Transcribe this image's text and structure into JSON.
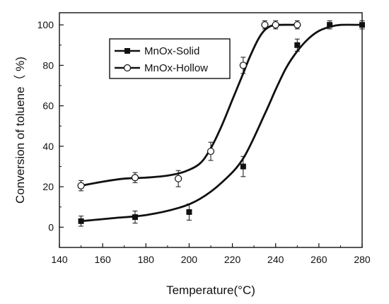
{
  "chart_data": {
    "type": "scatter",
    "title": "",
    "xlabel": "Temperature(°C)",
    "ylabel": "Conversion of toluene（ %)",
    "xlim": [
      140,
      280
    ],
    "ylim": [
      -10,
      106
    ],
    "xticks": [
      140,
      160,
      180,
      200,
      220,
      240,
      260,
      280
    ],
    "yticks": [
      0,
      20,
      40,
      60,
      80,
      100
    ],
    "grid": false,
    "legend_position": "top-left",
    "series": [
      {
        "name": "MnOx-Solid",
        "marker": "filled-square",
        "color": "#111111",
        "points": [
          {
            "x": 150,
            "y": 3,
            "err": 2.5
          },
          {
            "x": 175,
            "y": 5,
            "err": 3
          },
          {
            "x": 200,
            "y": 7.5,
            "err": 4
          },
          {
            "x": 225,
            "y": 30,
            "err": 5
          },
          {
            "x": 250,
            "y": 90,
            "err": 3
          },
          {
            "x": 265,
            "y": 100,
            "err": 2
          },
          {
            "x": 280,
            "y": 100,
            "err": 2
          }
        ],
        "fit": [
          [
            150,
            3
          ],
          [
            165,
            4.5
          ],
          [
            180,
            6
          ],
          [
            195,
            9.5
          ],
          [
            205,
            14
          ],
          [
            215,
            22
          ],
          [
            225,
            34
          ],
          [
            235,
            56
          ],
          [
            240,
            68
          ],
          [
            245,
            79
          ],
          [
            250,
            87
          ],
          [
            255,
            93
          ],
          [
            260,
            97
          ],
          [
            265,
            99
          ],
          [
            270,
            100
          ],
          [
            280,
            100
          ]
        ]
      },
      {
        "name": "MnOx-Hollow",
        "marker": "open-circle",
        "color": "#111111",
        "points": [
          {
            "x": 150,
            "y": 20.5,
            "err": 2.5
          },
          {
            "x": 175,
            "y": 24.5,
            "err": 2.5
          },
          {
            "x": 195,
            "y": 24,
            "err": 4
          },
          {
            "x": 210,
            "y": 37.5,
            "err": 4.5
          },
          {
            "x": 225,
            "y": 80,
            "err": 4
          },
          {
            "x": 235,
            "y": 100,
            "err": 2
          },
          {
            "x": 240,
            "y": 100,
            "err": 2
          },
          {
            "x": 250,
            "y": 100,
            "err": 2
          }
        ],
        "fit": [
          [
            150,
            20.5
          ],
          [
            160,
            22.5
          ],
          [
            170,
            24
          ],
          [
            180,
            24.5
          ],
          [
            190,
            25.5
          ],
          [
            198,
            27.5
          ],
          [
            205,
            31.5
          ],
          [
            210,
            39
          ],
          [
            215,
            50
          ],
          [
            220,
            63
          ],
          [
            225,
            76
          ],
          [
            228,
            84
          ],
          [
            232,
            93
          ],
          [
            235,
            97.5
          ],
          [
            238,
            99.5
          ],
          [
            242,
            100
          ],
          [
            250,
            100
          ]
        ]
      }
    ]
  }
}
